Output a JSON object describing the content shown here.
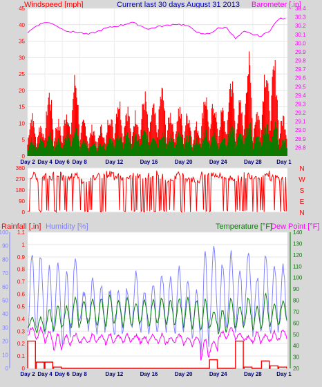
{
  "header": {
    "left_label": "Windspeed [mph]",
    "center_title": "Current last 30 days August 31 2013",
    "right_label": "Barometer [.in]"
  },
  "colors": {
    "windspeed": "#ff0000",
    "gust": "#ff0000",
    "wind_avg": "#008000",
    "barometer": "#ff00ff",
    "direction": "#ff0000",
    "rain": "#ff0000",
    "humidity": "#8080ff",
    "temperature": "#008000",
    "dewpoint": "#ff00ff",
    "title": "#0000c0",
    "day_labels": "#000080",
    "background": "#d8d8d8",
    "plot_bg": "#ffffff"
  },
  "x_axis": {
    "tick_labels": [
      "Day 2",
      "Day 4",
      "Day 6",
      "Day 8",
      "Day 12",
      "Day 16",
      "Day 20",
      "Day 24",
      "Day 28",
      "Day 1"
    ],
    "tick_days": [
      0,
      2,
      4,
      6,
      10,
      14,
      18,
      22,
      26,
      29.6
    ],
    "extra_tick_labels_bottom": [
      "Day 2",
      "Day 4",
      "Day 6",
      "Day 8",
      "Day 12",
      "Day 16",
      "Day 20",
      "Day 24",
      "Day 28",
      "Day 1"
    ],
    "day_span": 30
  },
  "chart_data": [
    {
      "type": "line",
      "name_panel": "wind_barometer",
      "left_axis": {
        "label": "Windspeed [mph]",
        "range": [
          0,
          45
        ],
        "ticks": [
          "0",
          "5",
          "10",
          "15",
          "20",
          "25",
          "30",
          "35",
          "40",
          "45"
        ]
      },
      "right_axis": {
        "label": "Barometer [.in]",
        "range": [
          28.7,
          30.4
        ],
        "ticks": [
          "28.8",
          "28.9",
          "29.0",
          "29.1",
          "29.2",
          "29.3",
          "29.4",
          "29.5",
          "29.6",
          "29.7",
          "29.8",
          "29.9",
          "30.0",
          "30.1",
          "30.2",
          "30.3",
          "30.4"
        ]
      },
      "series": [
        {
          "key": "gust",
          "style": "bars",
          "values_daily_peak": [
            14,
            11,
            22,
            12,
            16,
            27,
            12,
            10,
            10,
            15,
            20,
            17,
            15,
            21,
            17,
            23,
            15,
            17,
            15,
            11,
            22,
            19,
            16,
            27,
            18,
            33,
            16,
            32,
            31,
            14
          ]
        },
        {
          "key": "wind_avg",
          "style": "bars",
          "values_daily_peak": [
            6,
            6,
            8,
            6,
            8,
            10,
            6,
            5,
            5,
            7,
            8,
            8,
            7,
            9,
            8,
            9,
            7,
            8,
            7,
            6,
            9,
            8,
            7,
            11,
            8,
            12,
            7,
            11,
            11,
            6
          ]
        },
        {
          "key": "barometer",
          "axis": "right",
          "values": [
            30.12,
            30.2,
            30.24,
            30.22,
            30.16,
            30.13,
            30.12,
            30.1,
            30.13,
            30.17,
            30.19,
            30.21,
            30.24,
            30.2,
            30.16,
            30.19,
            30.2,
            30.22,
            30.21,
            30.17,
            30.1,
            30.11,
            30.17,
            30.18,
            30.05,
            30.13,
            30.1,
            30.08,
            30.15,
            30.28
          ]
        }
      ],
      "ylim": [
        0,
        45
      ]
    },
    {
      "type": "line",
      "name_panel": "wind_direction",
      "left_axis": {
        "label": "",
        "range": [
          0,
          360
        ],
        "ticks": [
          "0",
          "90",
          "180",
          "270",
          "360"
        ]
      },
      "right_axis": {
        "label": "",
        "ticks": [
          "N",
          "W",
          "S",
          "E",
          "N"
        ]
      },
      "series": [
        {
          "key": "direction",
          "style": "dense_line",
          "dominant_daily": [
            300,
            270,
            290,
            310,
            280,
            300,
            260,
            280,
            300,
            310,
            290,
            270,
            300,
            280,
            310,
            290,
            270,
            300,
            280,
            260,
            300,
            310,
            290,
            280,
            270,
            300,
            290,
            310,
            280,
            270
          ]
        }
      ],
      "ylim": [
        0,
        360
      ]
    },
    {
      "type": "line",
      "name_panel": "temp_humidity_rain",
      "labels": {
        "rain": "Rainfall [.in]",
        "humidity": "Humidity [%]",
        "temperature": "Temperature [°F]",
        "dewpoint": "Dew Point [°F]"
      },
      "rain_axis": {
        "range": [
          0,
          1.1
        ],
        "ticks": [
          "0",
          "0.1",
          "0.2",
          "0.3",
          "0.4",
          "0.5",
          "0.6",
          "0.7",
          "0.8",
          "0.9",
          "1",
          "1.1"
        ]
      },
      "humidity_axis": {
        "range": [
          0,
          100
        ],
        "ticks": [
          "0",
          "10",
          "20",
          "30",
          "40",
          "50",
          "60",
          "70",
          "80",
          "90",
          "100"
        ]
      },
      "temp_axis": {
        "range": [
          20,
          140
        ],
        "ticks": [
          "20",
          "30",
          "40",
          "50",
          "60",
          "70",
          "80",
          "90",
          "100",
          "110",
          "120",
          "130",
          "140"
        ]
      },
      "series": [
        {
          "key": "humidity",
          "axis": "humidity",
          "daily_max": [
            85,
            83,
            74,
            76,
            70,
            82,
            55,
            64,
            60,
            57,
            55,
            58,
            70,
            56,
            60,
            70,
            67,
            74,
            66,
            58,
            86,
            88,
            77,
            84,
            74,
            86,
            67,
            84,
            77,
            75
          ],
          "daily_min": [
            25,
            30,
            25,
            30,
            20,
            30,
            33,
            28,
            27,
            28,
            26,
            30,
            30,
            27,
            25,
            30,
            28,
            25,
            29,
            24,
            10,
            33,
            27,
            34,
            28,
            38,
            25,
            30,
            25,
            33
          ]
        },
        {
          "key": "temperature",
          "axis": "temp",
          "daily_max": [
            64,
            65,
            72,
            76,
            74,
            83,
            80,
            80,
            82,
            84,
            80,
            82,
            78,
            80,
            80,
            82,
            80,
            81,
            82,
            80,
            80,
            70,
            71,
            82,
            75,
            82,
            74,
            85,
            76,
            80
          ],
          "daily_min": [
            55,
            52,
            54,
            53,
            56,
            55,
            58,
            60,
            58,
            58,
            60,
            57,
            58,
            60,
            58,
            60,
            58,
            60,
            56,
            55,
            54,
            56,
            50,
            54,
            56,
            58,
            54,
            56,
            58,
            60
          ]
        },
        {
          "key": "dewpoint",
          "axis": "temp",
          "daily_max": [
            56,
            55,
            52,
            50,
            49,
            50,
            47,
            50,
            49,
            50,
            49,
            50,
            49,
            48,
            49,
            50,
            48,
            49,
            48,
            48,
            46,
            45,
            52,
            55,
            50,
            48,
            52,
            50,
            52,
            54
          ],
          "daily_min": [
            48,
            46,
            43,
            35,
            40,
            44,
            42,
            42,
            44,
            42,
            44,
            42,
            45,
            42,
            44,
            42,
            42,
            44,
            41,
            40,
            28,
            35,
            46,
            48,
            46,
            44,
            42,
            44,
            44,
            46
          ]
        },
        {
          "key": "rain",
          "axis": "rain",
          "daily_totals": [
            0.22,
            0.05,
            0.05,
            0.01,
            0,
            0,
            0,
            0,
            0,
            0,
            0,
            0,
            0,
            0,
            0,
            0,
            0,
            0,
            0,
            0,
            0,
            0.07,
            0,
            0,
            0.22,
            0.01,
            0,
            0.06,
            0.02,
            0.01
          ]
        }
      ],
      "ylim": [
        0,
        1.1
      ]
    }
  ],
  "panel3_labels": {
    "rain": "Rainfall [.in]",
    "humidity": "Humidity [%]",
    "temperature": "Temperature [°F]",
    "dewpoint": "Dew Point [°F]"
  }
}
